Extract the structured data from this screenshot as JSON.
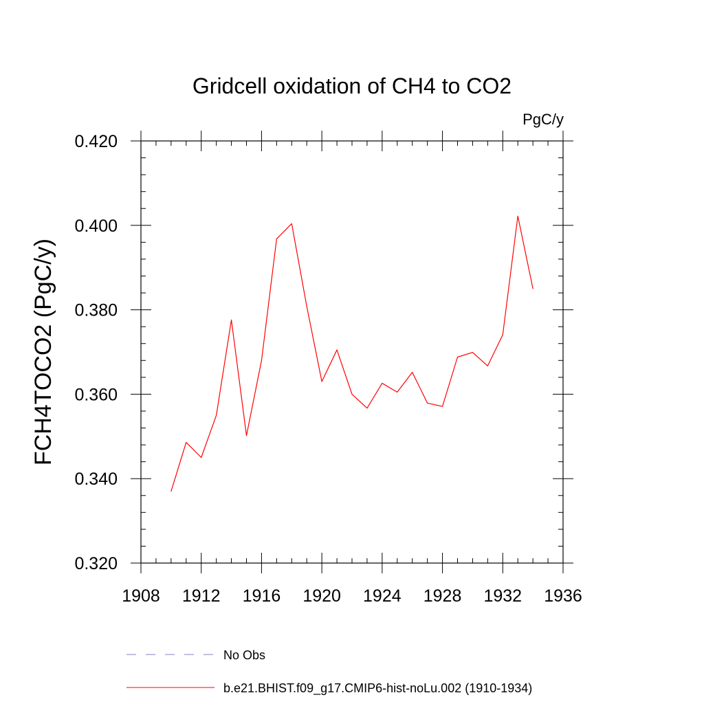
{
  "chart_data": {
    "type": "line",
    "title": "Gridcell oxidation of CH4 to CO2",
    "units_label": "PgC/y",
    "ylabel": "FCH4TOCO2  (PgC/y)",
    "xlabel": "",
    "xlim": [
      1908,
      1936
    ],
    "ylim": [
      0.32,
      0.42
    ],
    "x_ticks": [
      1908,
      1912,
      1916,
      1920,
      1924,
      1928,
      1932,
      1936
    ],
    "x_tick_labels": [
      "1908",
      "1912",
      "1916",
      "1920",
      "1924",
      "1928",
      "1932",
      "1936"
    ],
    "y_ticks": [
      0.32,
      0.34,
      0.36,
      0.38,
      0.4,
      0.42
    ],
    "y_tick_labels": [
      "0.320",
      "0.340",
      "0.360",
      "0.380",
      "0.400",
      "0.420"
    ],
    "grid": false,
    "legend_position": "bottom",
    "series": [
      {
        "name": "b.e21.BHIST.f09_g17.CMIP6-hist-noLu.002 (1910-1934)",
        "color": "#ff0000",
        "style": "solid",
        "x": [
          1910,
          1911,
          1912,
          1913,
          1914,
          1915,
          1916,
          1917,
          1918,
          1919,
          1920,
          1921,
          1922,
          1923,
          1924,
          1925,
          1926,
          1927,
          1928,
          1929,
          1930,
          1931,
          1932,
          1933,
          1934
        ],
        "y": [
          0.337,
          0.3486,
          0.345,
          0.355,
          0.3776,
          0.3502,
          0.368,
          0.3968,
          0.4004,
          0.3808,
          0.363,
          0.3705,
          0.36,
          0.3567,
          0.3626,
          0.3605,
          0.3652,
          0.3579,
          0.3571,
          0.3688,
          0.3699,
          0.3667,
          0.3741,
          0.4022,
          0.385
        ]
      }
    ],
    "legend": [
      {
        "label": "No Obs",
        "color": "#8080c0",
        "style": "dashed"
      },
      {
        "label": "b.e21.BHIST.f09_g17.CMIP6-hist-noLu.002 (1910-1934)",
        "color": "#ff0000",
        "style": "solid"
      }
    ]
  }
}
